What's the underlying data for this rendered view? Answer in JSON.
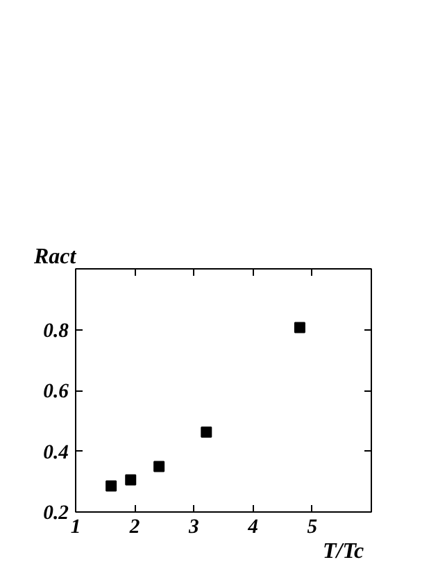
{
  "chart_data": {
    "type": "scatter",
    "xlabel": "T/Tc",
    "ylabel": "Ract",
    "x": [
      1.6,
      1.93,
      2.41,
      3.21,
      4.79
    ],
    "values": [
      0.286,
      0.306,
      0.35,
      0.463,
      0.807
    ],
    "color": "#000000",
    "marker": "square",
    "xlim": [
      1,
      6
    ],
    "xticks": [
      1,
      2,
      3,
      4,
      5,
      {
        "value": 6,
        "label": null
      }
    ],
    "ylim": [
      0.2,
      1.0
    ],
    "yticks": [
      0.2,
      0.4,
      0.6,
      0.8,
      {
        "value": 1.0,
        "label": null
      }
    ],
    "grid": false
  }
}
